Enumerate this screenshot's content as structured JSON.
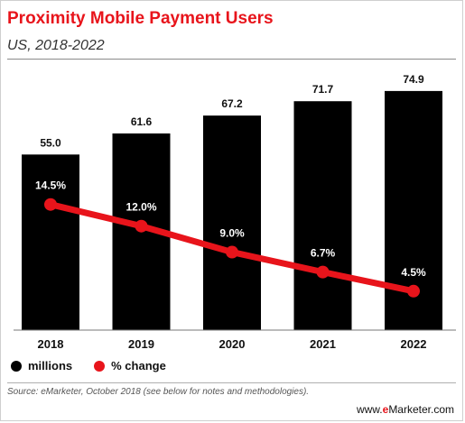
{
  "header": {
    "title": "Proximity Mobile Payment Users",
    "subtitle": "US, 2018-2022"
  },
  "legend": {
    "bars_label": "millions",
    "line_label": "% change"
  },
  "footer": {
    "source": "Source: eMarketer, October 2018 (see below for notes and methodologies).",
    "brand_prefix": "www.",
    "brand_mark": "e",
    "brand_suffix": "Marketer.com"
  },
  "colors": {
    "bars": "#000000",
    "line": "#e8141b",
    "title": "#e8141b"
  },
  "chart_data": {
    "type": "bar",
    "title": "Proximity Mobile Payment Users",
    "subtitle": "US, 2018-2022",
    "categories": [
      "2018",
      "2019",
      "2020",
      "2021",
      "2022"
    ],
    "series": [
      {
        "name": "millions",
        "type": "bar",
        "values": [
          55.0,
          61.6,
          67.2,
          71.7,
          74.9
        ],
        "labels": [
          "55.0",
          "61.6",
          "67.2",
          "71.7",
          "74.9"
        ]
      },
      {
        "name": "% change",
        "type": "line",
        "values": [
          14.5,
          12.0,
          9.0,
          6.7,
          4.5
        ],
        "labels": [
          "14.5%",
          "12.0%",
          "9.0%",
          "6.7%",
          "4.5%"
        ]
      }
    ],
    "ylim_bars": [
      0,
      76
    ],
    "ylim_line": [
      0,
      28
    ],
    "grid": false,
    "legend_position": "bottom-left"
  }
}
